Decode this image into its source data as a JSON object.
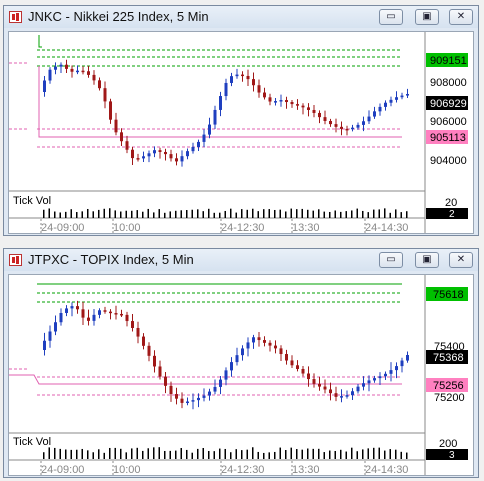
{
  "windows": [
    {
      "title": "JNKC - Nikkei 225 Index, 5 Min",
      "controls": {
        "minimize": "▭",
        "restore": "▣",
        "close": "✕"
      },
      "price_axis": {
        "ticks": [
          "908000",
          "906000",
          "904000"
        ]
      },
      "price_tags": [
        {
          "label": "909151",
          "bg": "#00c000",
          "fg": "#000000"
        },
        {
          "label": "906929",
          "bg": "#000000",
          "fg": "#ffffff"
        },
        {
          "label": "905113",
          "bg": "#ff80c0",
          "fg": "#000000"
        }
      ],
      "volume": {
        "label": "Tick Vol",
        "tick": "20",
        "value": "2"
      },
      "time_labels": [
        "24-09:00",
        "10:00",
        "24-12:30",
        "13:30",
        "24-14:30"
      ]
    },
    {
      "title": "JTPXC - TOPIX Index, 5 Min",
      "controls": {
        "minimize": "▭",
        "restore": "▣",
        "close": "✕"
      },
      "price_axis": {
        "ticks": [
          "75600",
          "75400",
          "75200"
        ]
      },
      "price_tags": [
        {
          "label": "75618",
          "bg": "#00c000",
          "fg": "#000000"
        },
        {
          "label": "75368",
          "bg": "#000000",
          "fg": "#ffffff"
        },
        {
          "label": "75256",
          "bg": "#ff80c0",
          "fg": "#000000"
        }
      ],
      "volume": {
        "label": "Tick Vol",
        "tick": "200",
        "value": "3"
      },
      "time_labels": [
        "24-09:00",
        "10:00",
        "24-12:30",
        "13:30",
        "24-14:30"
      ]
    }
  ],
  "colors": {
    "up": "#1f3fbf",
    "down": "#a01818",
    "resistance": "#00a000",
    "support": "#e060b0"
  }
}
